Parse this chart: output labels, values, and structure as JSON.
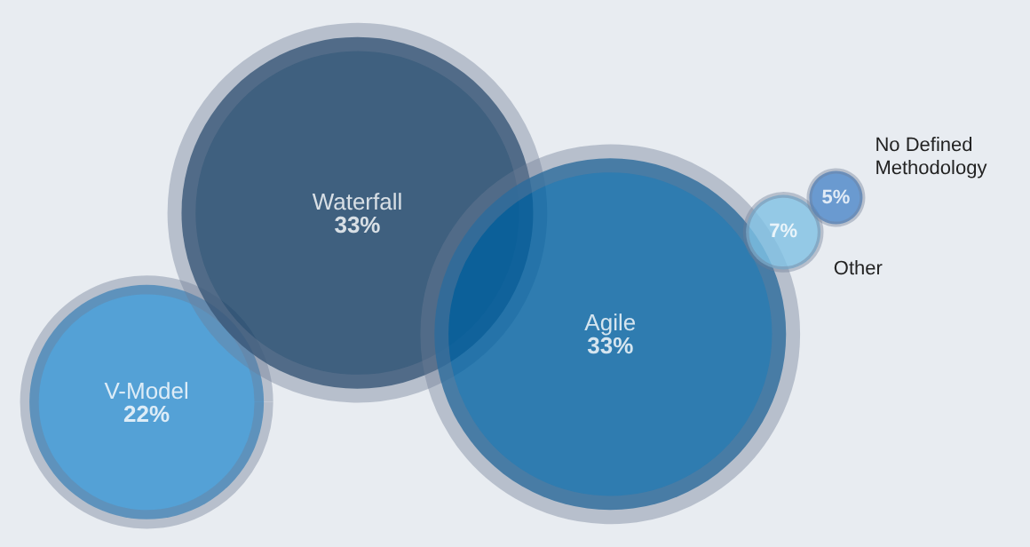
{
  "chart_data": {
    "type": "other",
    "categories": [
      "V-Model",
      "Waterfall",
      "Agile",
      "Other",
      "No Defined Methodology"
    ],
    "values": [
      22,
      33,
      33,
      7,
      5
    ],
    "value_labels": [
      "22%",
      "33%",
      "33%",
      "7%",
      "5%"
    ],
    "colors": [
      "#2e8fd0",
      "#143d63",
      "#0060a0",
      "#7ec0e4",
      "#4a86c8"
    ]
  }
}
